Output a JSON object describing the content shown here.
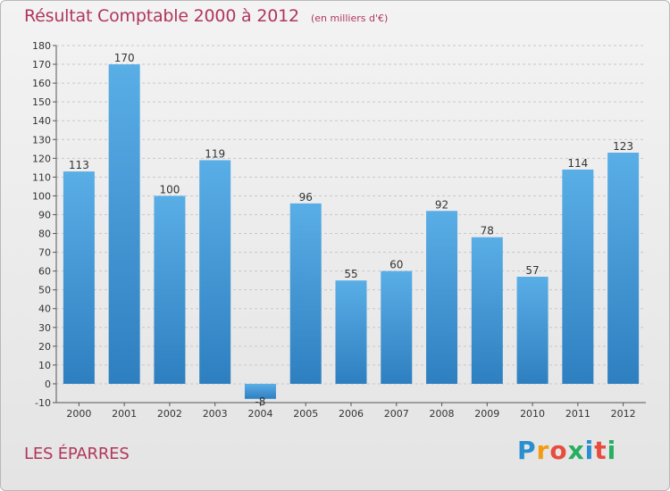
{
  "header": {
    "title": "Résultat Comptable 2000 à 2012",
    "subtitle": "(en milliers d'€)"
  },
  "footer": {
    "commune": "LES ÉPARRES",
    "logo": [
      "P",
      "r",
      "o",
      "x",
      "i",
      "t",
      "i"
    ]
  },
  "colors": {
    "bar_top": "#5aaee6",
    "bar_bottom": "#2e7fc0",
    "title": "#b0365b",
    "grid": "#c8c8c8"
  },
  "chart_data": {
    "type": "bar",
    "title": "Résultat Comptable 2000 à 2012",
    "xlabel": "",
    "ylabel": "",
    "ylim": [
      -10,
      180
    ],
    "yticks": [
      -10,
      0,
      10,
      20,
      30,
      40,
      50,
      60,
      70,
      80,
      90,
      100,
      110,
      120,
      130,
      140,
      150,
      160,
      170,
      180
    ],
    "categories": [
      "2000",
      "2001",
      "2002",
      "2003",
      "2004",
      "2005",
      "2006",
      "2007",
      "2008",
      "2009",
      "2010",
      "2011",
      "2012"
    ],
    "values": [
      113,
      170,
      100,
      119,
      -8,
      96,
      55,
      60,
      92,
      78,
      57,
      114,
      123
    ],
    "grid": true
  }
}
